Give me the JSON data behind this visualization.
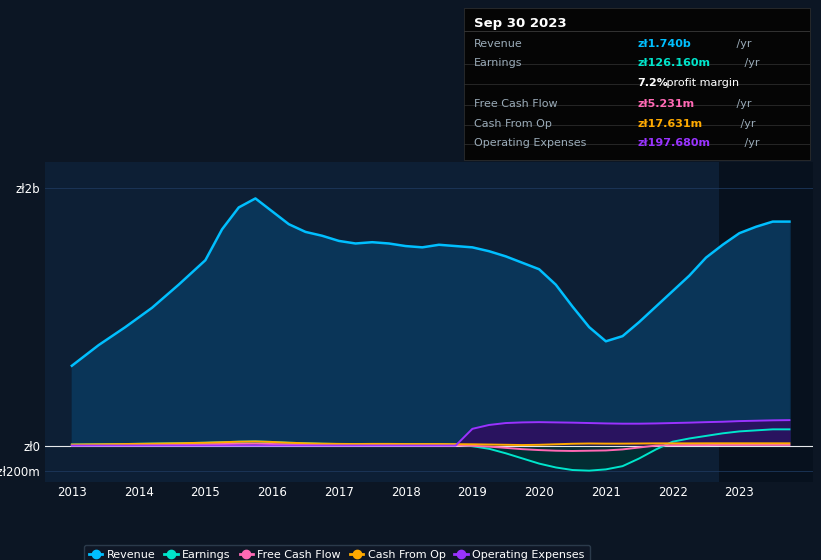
{
  "background_color": "#0c1624",
  "plot_bg_color": "#0d1f35",
  "grid_color": "#1e3a5f",
  "years": [
    2013.0,
    2013.4,
    2013.8,
    2014.2,
    2014.6,
    2015.0,
    2015.25,
    2015.5,
    2015.75,
    2016.0,
    2016.25,
    2016.5,
    2016.75,
    2017.0,
    2017.25,
    2017.5,
    2017.75,
    2018.0,
    2018.25,
    2018.5,
    2018.75,
    2019.0,
    2019.25,
    2019.5,
    2019.75,
    2020.0,
    2020.25,
    2020.5,
    2020.75,
    2021.0,
    2021.25,
    2021.5,
    2021.75,
    2022.0,
    2022.25,
    2022.5,
    2022.75,
    2023.0,
    2023.25,
    2023.5,
    2023.75
  ],
  "revenue": [
    620,
    780,
    920,
    1070,
    1250,
    1440,
    1680,
    1850,
    1920,
    1820,
    1720,
    1660,
    1630,
    1590,
    1570,
    1580,
    1570,
    1550,
    1540,
    1560,
    1550,
    1540,
    1510,
    1470,
    1420,
    1370,
    1250,
    1080,
    920,
    810,
    850,
    960,
    1080,
    1200,
    1320,
    1460,
    1560,
    1650,
    1700,
    1740,
    1740
  ],
  "earnings": [
    8,
    10,
    12,
    15,
    18,
    22,
    26,
    30,
    32,
    28,
    22,
    18,
    14,
    12,
    11,
    12,
    12,
    11,
    10,
    10,
    8,
    -5,
    -25,
    -60,
    -100,
    -140,
    -170,
    -190,
    -195,
    -185,
    -160,
    -100,
    -30,
    30,
    55,
    75,
    95,
    110,
    118,
    126,
    126
  ],
  "free_cash_flow": [
    3,
    4,
    5,
    6,
    8,
    10,
    12,
    14,
    15,
    12,
    9,
    7,
    5,
    4,
    4,
    5,
    5,
    4,
    3,
    3,
    2,
    -2,
    -8,
    -18,
    -28,
    -35,
    -40,
    -42,
    -40,
    -38,
    -30,
    -15,
    0,
    3,
    4,
    4,
    5,
    5,
    5.2,
    5.2,
    5.2
  ],
  "cash_from_op": [
    8,
    10,
    12,
    15,
    18,
    22,
    26,
    30,
    32,
    28,
    22,
    18,
    15,
    13,
    12,
    13,
    13,
    12,
    12,
    12,
    11,
    10,
    8,
    6,
    4,
    6,
    10,
    14,
    16,
    15,
    15,
    16,
    17,
    17,
    17,
    17.5,
    17.6,
    17.6,
    17.6,
    17.6,
    17.6
  ],
  "operating_expenses": [
    0,
    0,
    0,
    0,
    0,
    0,
    0,
    0,
    0,
    0,
    0,
    0,
    0,
    0,
    0,
    0,
    0,
    0,
    0,
    0,
    0,
    130,
    160,
    175,
    180,
    182,
    180,
    178,
    175,
    172,
    170,
    170,
    172,
    175,
    178,
    182,
    185,
    190,
    193,
    196,
    197.7
  ],
  "revenue_color": "#00bfff",
  "earnings_color": "#00e5cc",
  "fcf_color": "#ff69b4",
  "cashop_color": "#ffaa00",
  "opex_color": "#9933ff",
  "revenue_fill_color": "#0a3558",
  "opex_fill_color": "#2d1060",
  "ylim": [
    -280,
    2200
  ],
  "yticks": [
    -200,
    0,
    2000
  ],
  "ytick_labels": [
    "-zł200m",
    "zł0",
    "zł2b"
  ],
  "xticks": [
    2013,
    2014,
    2015,
    2016,
    2017,
    2018,
    2019,
    2020,
    2021,
    2022,
    2023
  ],
  "xlim_min": 2012.6,
  "xlim_max": 2024.1,
  "highlight_x_start": 2022.7,
  "info_box_title": "Sep 30 2023",
  "info_rows": [
    {
      "label": "Revenue",
      "value": "zł1.740b /yr",
      "color": "#00bfff",
      "extra": null
    },
    {
      "label": "Earnings",
      "value": "zł126.160m /yr",
      "color": "#00e5cc",
      "extra": "7.2% profit margin"
    },
    {
      "label": "Free Cash Flow",
      "value": "zł5.231m /yr",
      "color": "#ff69b4",
      "extra": null
    },
    {
      "label": "Cash From Op",
      "value": "zł17.631m /yr",
      "color": "#ffaa00",
      "extra": null
    },
    {
      "label": "Operating Expenses",
      "value": "zł197.680m /yr",
      "color": "#9933ff",
      "extra": null
    }
  ],
  "legend_items": [
    {
      "label": "Revenue",
      "color": "#00bfff"
    },
    {
      "label": "Earnings",
      "color": "#00e5cc"
    },
    {
      "label": "Free Cash Flow",
      "color": "#ff69b4"
    },
    {
      "label": "Cash From Op",
      "color": "#ffaa00"
    },
    {
      "label": "Operating Expenses",
      "color": "#9933ff"
    }
  ]
}
